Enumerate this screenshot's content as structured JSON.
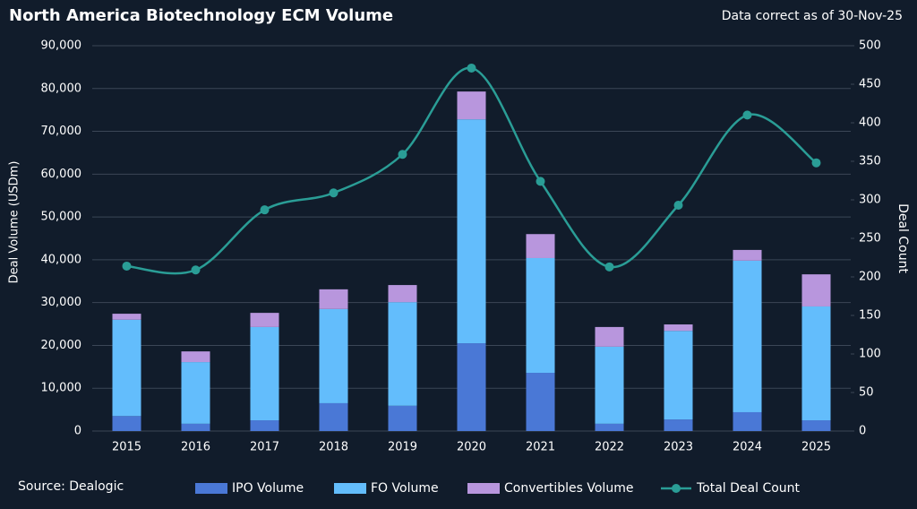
{
  "chart_data": {
    "type": "bar",
    "stacked": true,
    "title": "North America Biotechnology ECM Volume",
    "subtitle": "Data correct as of 30-Nov-25",
    "source": "Source: Dealogic",
    "y_label": "Deal Volume (USDm)",
    "y2_label": "Deal Count",
    "categories": [
      "2015",
      "2016",
      "2017",
      "2018",
      "2019",
      "2020",
      "2021",
      "2022",
      "2023",
      "2024",
      "2025"
    ],
    "series": [
      {
        "name": "IPO Volume",
        "color": "#4a78d6",
        "values": [
          3500,
          1700,
          2500,
          6500,
          5900,
          20500,
          13600,
          1700,
          2700,
          4400,
          2500
        ]
      },
      {
        "name": "FO Volume",
        "color": "#63bdfc",
        "values": [
          22500,
          14400,
          21800,
          22000,
          24200,
          52300,
          26800,
          18000,
          20700,
          35400,
          26600
        ]
      },
      {
        "name": "Convertibles Volume",
        "color": "#b896dd",
        "values": [
          1400,
          2500,
          3300,
          4600,
          4000,
          6500,
          5600,
          4600,
          1500,
          2500,
          7500
        ]
      },
      {
        "name": "Total Deal Count",
        "color": "#2a9d96",
        "type": "line",
        "axis": "y2",
        "values": [
          214,
          209,
          287,
          309,
          359,
          471,
          324,
          213,
          293,
          410,
          348
        ]
      }
    ],
    "ylim": [
      0,
      90000
    ],
    "yticks": [
      0,
      {
        "value": 10000,
        "label": "10,000"
      },
      {
        "value": 20000,
        "label": "20,000"
      },
      {
        "value": 30000,
        "label": "30,000"
      },
      {
        "value": 40000,
        "label": "40,000"
      },
      {
        "value": 50000,
        "label": "50,000"
      },
      {
        "value": 60000,
        "label": "60,000"
      },
      {
        "value": 70000,
        "label": "70,000"
      },
      {
        "value": 80000,
        "label": "80,000"
      },
      {
        "value": 90000,
        "label": "90,000"
      }
    ],
    "y2lim": [
      0,
      500
    ],
    "y2ticks": [
      0,
      50,
      100,
      150,
      200,
      250,
      300,
      350,
      400,
      450,
      500
    ],
    "grid": true,
    "legend": "bottom"
  }
}
